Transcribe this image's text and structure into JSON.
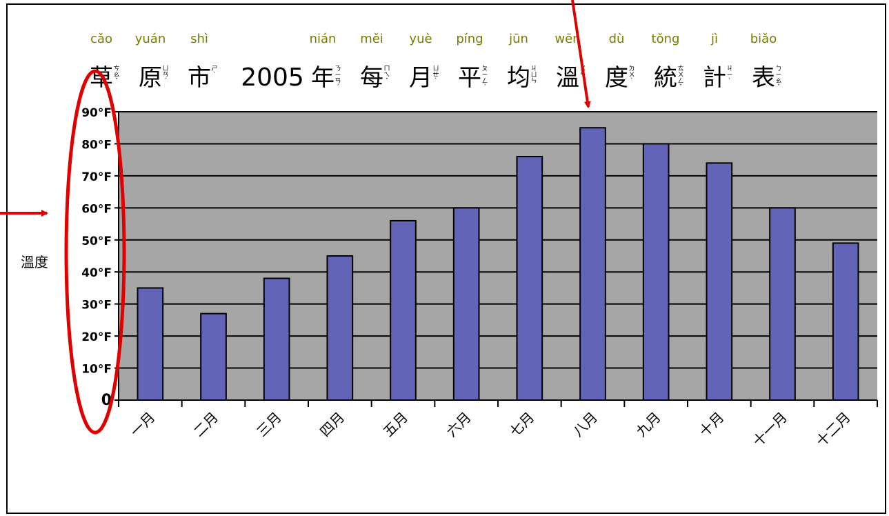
{
  "chart_data": {
    "type": "bar",
    "title": "草原市2005年每月平均溫度統計表",
    "title_segments": [
      {
        "char": "草",
        "pinyin": "cǎo",
        "zhuyin": "ㄘㄠˇ"
      },
      {
        "char": "原",
        "pinyin": "yuán",
        "zhuyin": "ㄩㄢˊ"
      },
      {
        "char": "市",
        "pinyin": "shì",
        "zhuyin": "ㄕˋ"
      },
      {
        "char": "2005",
        "pinyin": "",
        "zhuyin": ""
      },
      {
        "char": "年",
        "pinyin": "nián",
        "zhuyin": "ㄋㄧㄢˊ"
      },
      {
        "char": "每",
        "pinyin": "měi",
        "zhuyin": "ㄇㄟˇ"
      },
      {
        "char": "月",
        "pinyin": "yuè",
        "zhuyin": "ㄩㄝˋ"
      },
      {
        "char": "平",
        "pinyin": "píng",
        "zhuyin": "ㄆㄧㄥˊ"
      },
      {
        "char": "均",
        "pinyin": "jūn",
        "zhuyin": "ㄐㄩㄣ"
      },
      {
        "char": "溫",
        "pinyin": "wēn",
        "zhuyin": "ㄨㄣ"
      },
      {
        "char": "度",
        "pinyin": "dù",
        "zhuyin": "ㄉㄨˋ"
      },
      {
        "char": "統",
        "pinyin": "tǒng",
        "zhuyin": "ㄊㄨㄥˇ"
      },
      {
        "char": "計",
        "pinyin": "jì",
        "zhuyin": "ㄐㄧˋ"
      },
      {
        "char": "表",
        "pinyin": "biǎo",
        "zhuyin": "ㄅㄧㄠˇ"
      }
    ],
    "ylabel": "溫度",
    "xlabel": "",
    "categories": [
      "一月",
      "二月",
      "三月",
      "四月",
      "五月",
      "六月",
      "七月",
      "八月",
      "九月",
      "十月",
      "十一月",
      "十二月"
    ],
    "values": [
      35,
      27,
      38,
      45,
      56,
      60,
      76,
      85,
      80,
      74,
      60,
      49
    ],
    "ylim": [
      0,
      90
    ],
    "yticks": [
      0,
      10,
      20,
      30,
      40,
      50,
      60,
      70,
      80,
      90
    ],
    "ytick_labels": [
      "0",
      "10°F",
      "20°F",
      "30°F",
      "40°F",
      "50°F",
      "60°F",
      "70°F",
      "80°F",
      "90°F"
    ],
    "grid": true,
    "colors": {
      "bar": "#6264b8",
      "plot_background": "#a6a6a6",
      "pinyin": "#7a7a00",
      "annotation": "#e00000"
    },
    "annotations": [
      {
        "type": "ellipse",
        "target": "y-axis tick labels",
        "color": "#e00000"
      },
      {
        "type": "arrow",
        "target": "y-axis",
        "color": "#e00000"
      },
      {
        "type": "arrow",
        "target": "title character 溫",
        "color": "#e00000"
      }
    ]
  }
}
